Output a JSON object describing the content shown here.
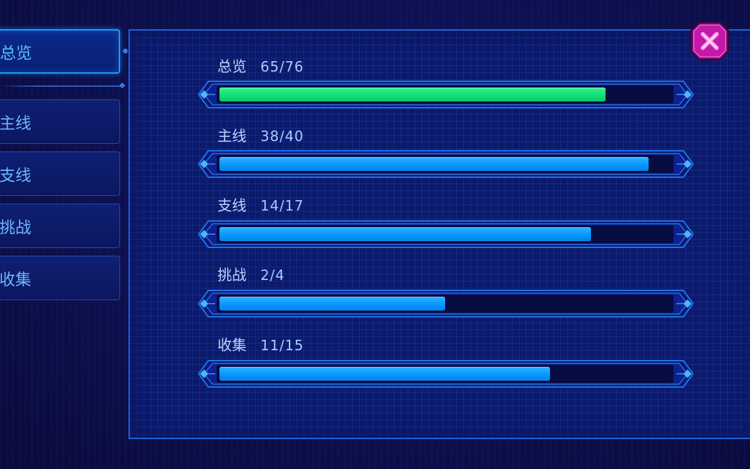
{
  "sidebar": {
    "tabs": [
      {
        "label": "总览",
        "active": true
      },
      {
        "label": "主线",
        "active": false
      },
      {
        "label": "支线",
        "active": false
      },
      {
        "label": "挑战",
        "active": false
      },
      {
        "label": "收集",
        "active": false
      }
    ]
  },
  "progress": [
    {
      "label": "总览",
      "count": "65/76",
      "fraction": 0.855,
      "color": "#13e07a"
    },
    {
      "label": "主线",
      "count": "38/40",
      "fraction": 0.95,
      "color": "#0797ff"
    },
    {
      "label": "支线",
      "count": "14/17",
      "fraction": 0.823,
      "color": "#0797ff"
    },
    {
      "label": "挑战",
      "count": "2/4",
      "fraction": 0.5,
      "color": "#0797ff"
    },
    {
      "label": "收集",
      "count": "11/15",
      "fraction": 0.733,
      "color": "#0797ff"
    }
  ],
  "close_button": {
    "icon": "close-icon",
    "color": "#d11fb4"
  }
}
